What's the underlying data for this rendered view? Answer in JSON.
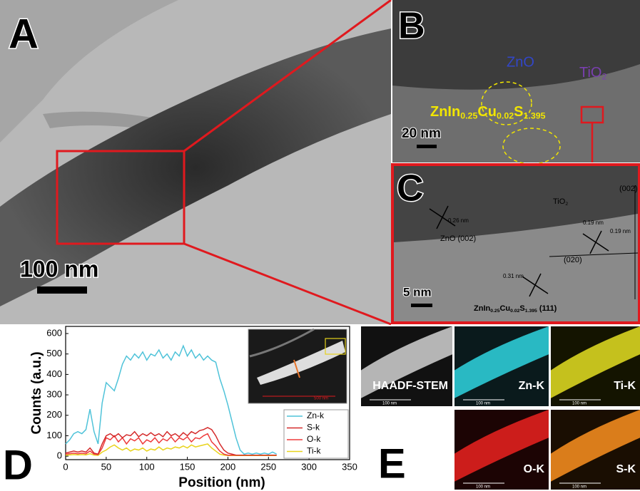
{
  "panels": {
    "a": {
      "letter": "A",
      "scale": "100 nm"
    },
    "b": {
      "letter": "B",
      "zno": "ZnO",
      "tio2": [
        "TiO",
        "2"
      ],
      "compound": [
        "ZnIn",
        "0.25",
        "Cu",
        "0.02",
        "S",
        "1.395"
      ],
      "scale": "20 nm"
    },
    "c": {
      "letter": "C",
      "d_zno": "0.26 nm",
      "zno_plane": "ZnO (002)",
      "tio2": [
        "TiO",
        "2"
      ],
      "plane_002": "(002)",
      "d_tio2_a": "0.19 nm",
      "d_tio2_b": "0.19 nm",
      "plane_020": "(020)",
      "d_znin": "0.31 nm",
      "znin_plane": [
        "ZnIn",
        "0.25",
        "Cu",
        "0.02",
        "S",
        "1.395",
        " (111)"
      ],
      "scale": "5 nm"
    },
    "d": {
      "letter": "D",
      "inset_scale": "500 nm"
    },
    "e": {
      "letter": "E",
      "maps": [
        {
          "label": "HAADF-STEM",
          "scale": "100 nm"
        },
        {
          "label": "Zn-K",
          "scale": "100 nm"
        },
        {
          "label": "Ti-K",
          "scale": "100 nm"
        },
        {
          "label": "O-K",
          "scale": "100 nm"
        },
        {
          "label": "S-K",
          "scale": "100 nm"
        }
      ]
    }
  },
  "chart_data": {
    "type": "line",
    "x_label": "Position (nm)",
    "y_label": "Counts (a.u.)",
    "xlim": [
      0,
      350
    ],
    "ylim": [
      -17,
      635
    ],
    "xticks": [
      0,
      50,
      100,
      150,
      200,
      250,
      300,
      350
    ],
    "yticks": [
      0,
      100,
      200,
      300,
      400,
      500,
      600
    ],
    "legend": "lower right",
    "x": [
      0,
      5,
      10,
      15,
      20,
      25,
      30,
      35,
      40,
      45,
      50,
      55,
      60,
      65,
      70,
      75,
      80,
      85,
      90,
      95,
      100,
      105,
      110,
      115,
      120,
      125,
      130,
      135,
      140,
      145,
      150,
      155,
      160,
      165,
      170,
      175,
      180,
      185,
      190,
      195,
      200,
      205,
      210,
      215,
      220,
      225,
      230,
      235,
      240,
      245,
      250,
      255,
      260
    ],
    "series": [
      {
        "name": "Zn-k",
        "color": "#4fc3d9",
        "values": [
          60,
          80,
          110,
          120,
          110,
          130,
          230,
          120,
          60,
          260,
          360,
          340,
          320,
          380,
          450,
          490,
          470,
          500,
          480,
          510,
          470,
          500,
          490,
          520,
          480,
          500,
          470,
          510,
          490,
          540,
          490,
          520,
          480,
          500,
          470,
          490,
          470,
          460,
          380,
          320,
          250,
          170,
          90,
          30,
          10,
          15,
          10,
          15,
          10,
          15,
          10,
          20,
          10
        ]
      },
      {
        "name": "S-k",
        "color": "#d42a2a",
        "values": [
          15,
          20,
          25,
          20,
          25,
          20,
          40,
          15,
          10,
          60,
          100,
          110,
          95,
          110,
          90,
          105,
          100,
          120,
          95,
          110,
          100,
          115,
          100,
          110,
          95,
          120,
          100,
          110,
          95,
          115,
          100,
          120,
          110,
          125,
          130,
          140,
          130,
          100,
          60,
          30,
          15,
          10,
          5,
          5,
          5,
          5,
          5,
          5,
          5,
          5,
          5,
          5,
          5
        ]
      },
      {
        "name": "O-k",
        "color": "#ee3b3b",
        "values": [
          10,
          12,
          15,
          12,
          15,
          12,
          25,
          10,
          8,
          40,
          90,
          80,
          100,
          70,
          90,
          60,
          85,
          75,
          90,
          60,
          80,
          70,
          90,
          65,
          85,
          75,
          95,
          70,
          90,
          80,
          95,
          70,
          90,
          85,
          100,
          110,
          70,
          50,
          25,
          10,
          5,
          5,
          5,
          5,
          5,
          5,
          5,
          5,
          5,
          5,
          5,
          5,
          5
        ]
      },
      {
        "name": "Ti-k",
        "color": "#e8d31a",
        "values": [
          5,
          6,
          8,
          6,
          8,
          6,
          12,
          5,
          4,
          20,
          30,
          45,
          55,
          40,
          30,
          40,
          25,
          35,
          30,
          40,
          25,
          35,
          30,
          45,
          30,
          40,
          35,
          45,
          40,
          50,
          40,
          55,
          45,
          50,
          55,
          60,
          40,
          25,
          10,
          5,
          3,
          3,
          3,
          3,
          3,
          3,
          3,
          3,
          3,
          3,
          3,
          3,
          3
        ]
      }
    ]
  }
}
